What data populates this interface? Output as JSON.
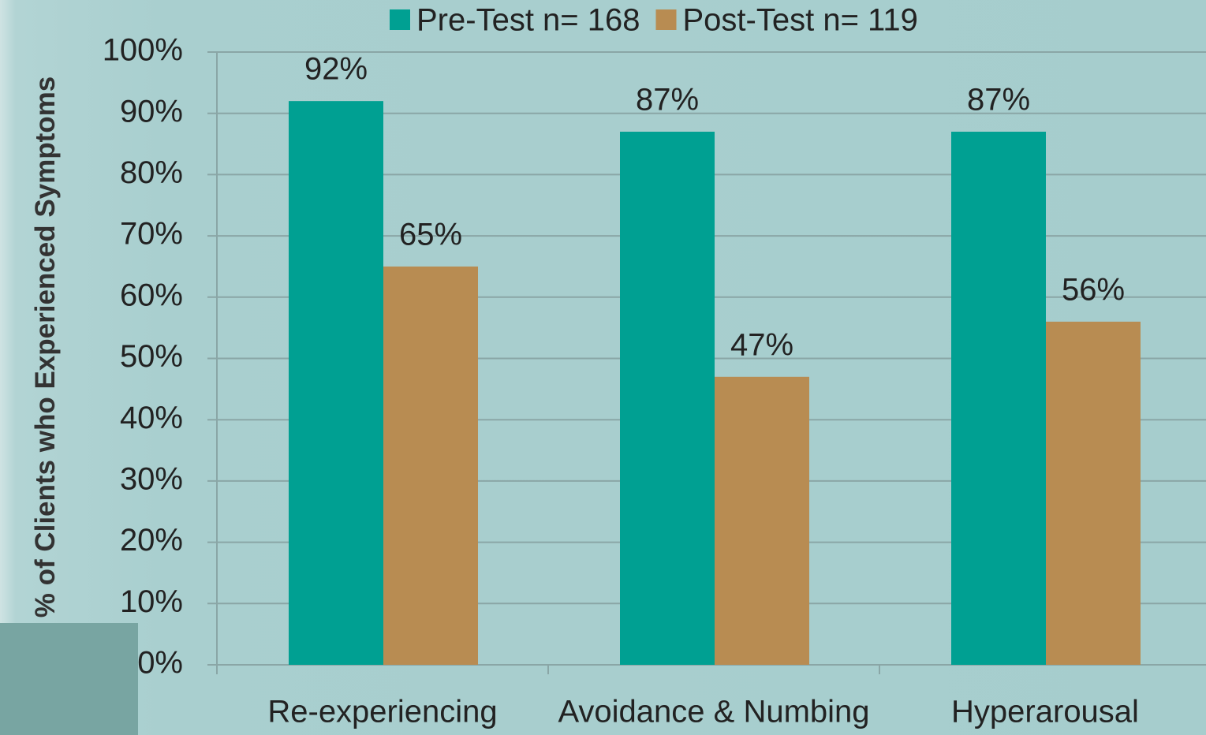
{
  "chart_data": {
    "type": "bar",
    "categories": [
      "Re-experiencing",
      "Avoidance & Numbing",
      "Hyperarousal"
    ],
    "series": [
      {
        "name": "Pre-Test n= 168",
        "color": "#00a092",
        "values": [
          92,
          87,
          87
        ],
        "value_labels": [
          "92%",
          "87%",
          "87%"
        ]
      },
      {
        "name": "Post-Test n= 119",
        "color": "#b88c52",
        "values": [
          65,
          47,
          56
        ],
        "value_labels": [
          "65%",
          "47%",
          "56%"
        ]
      }
    ],
    "ylabel": "% of Clients who Experienced Symptoms",
    "ylim": [
      0,
      100
    ],
    "yticks": [
      {
        "value": 0,
        "label": "0%"
      },
      {
        "value": 10,
        "label": "10%"
      },
      {
        "value": 20,
        "label": "20%"
      },
      {
        "value": 30,
        "label": "30%"
      },
      {
        "value": 40,
        "label": "40%"
      },
      {
        "value": 50,
        "label": "50%"
      },
      {
        "value": 60,
        "label": "60%"
      },
      {
        "value": 70,
        "label": "70%"
      },
      {
        "value": 80,
        "label": "80%"
      },
      {
        "value": 90,
        "label": "90%"
      },
      {
        "value": 100,
        "label": "100%"
      }
    ],
    "grid": true,
    "legend": "top"
  }
}
